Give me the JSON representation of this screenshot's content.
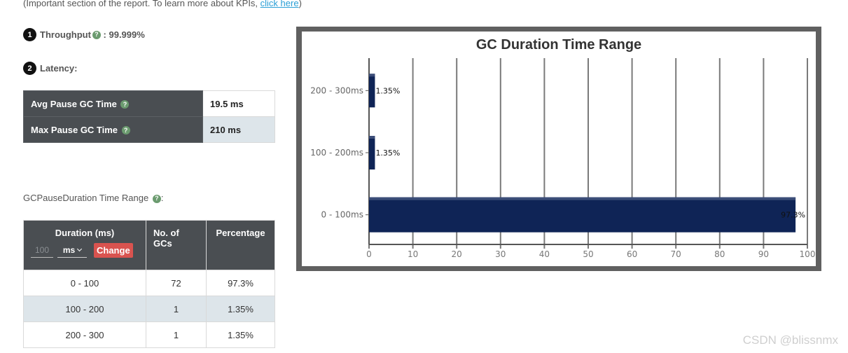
{
  "intro": {
    "text": "(Important section of the report. To learn more about KPIs, ",
    "link": "click here",
    "close": ")"
  },
  "throughput": {
    "badge": "1",
    "label": "Throughput",
    "separator": " : ",
    "value": "99.999%",
    "help_icon": "question-circle-icon"
  },
  "latency": {
    "badge": "2",
    "label": "Latency:",
    "rows": [
      {
        "label": "Avg Pause GC Time",
        "value": "19.5 ms"
      },
      {
        "label": "Max Pause GC Time",
        "value": "210 ms"
      }
    ]
  },
  "range_section": {
    "title": "GCPauseDuration Time Range",
    "suffix": ":",
    "headers": {
      "duration": "Duration (ms)",
      "count": "No. of GCs",
      "percentage": "Percentage"
    },
    "unit_input_placeholder": "100",
    "unit_select": "ms",
    "change_button": "Change",
    "rows": [
      {
        "range": "0 - 100",
        "count": "72",
        "percentage": "97.3%"
      },
      {
        "range": "100 - 200",
        "count": "1",
        "percentage": "1.35%"
      },
      {
        "range": "200 - 300",
        "count": "1",
        "percentage": "1.35%"
      }
    ]
  },
  "chart_data": {
    "type": "bar",
    "orientation": "horizontal",
    "title": "GC Duration Time Range",
    "categories": [
      "0 - 100ms",
      "100 - 200ms",
      "200 - 300ms"
    ],
    "values": [
      97.3,
      1.35,
      1.35
    ],
    "data_labels": [
      "97.3%",
      "1.35%",
      "1.35%"
    ],
    "xlim": [
      0,
      100
    ],
    "xticks": [
      0,
      10,
      20,
      30,
      40,
      50,
      60,
      70,
      80,
      90,
      100
    ],
    "grid": true,
    "bar_color": "#0f2456",
    "frame_color": "#606060"
  },
  "colors": {
    "header_bg": "#4a4e52",
    "alt_row": "#dde5ea",
    "help_icon": "#6b9b6f",
    "change_button": "#d9534f",
    "link": "#2a9fd6"
  },
  "watermark": "CSDN @blissnmx"
}
